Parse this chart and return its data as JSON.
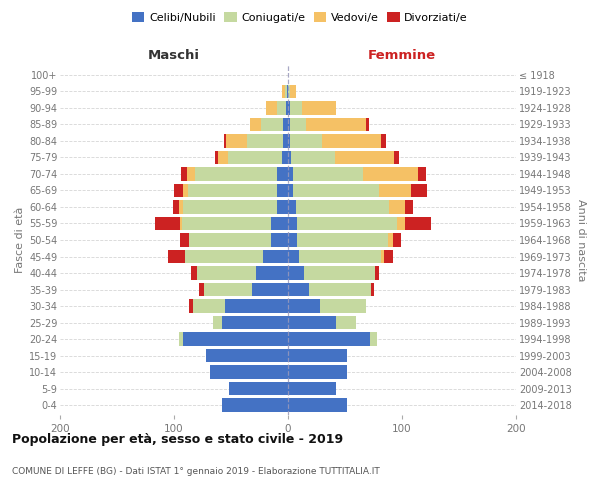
{
  "age_groups": [
    "0-4",
    "5-9",
    "10-14",
    "15-19",
    "20-24",
    "25-29",
    "30-34",
    "35-39",
    "40-44",
    "45-49",
    "50-54",
    "55-59",
    "60-64",
    "65-69",
    "70-74",
    "75-79",
    "80-84",
    "85-89",
    "90-94",
    "95-99",
    "100+"
  ],
  "birth_years": [
    "2014-2018",
    "2009-2013",
    "2004-2008",
    "1999-2003",
    "1994-1998",
    "1989-1993",
    "1984-1988",
    "1979-1983",
    "1974-1978",
    "1969-1973",
    "1964-1968",
    "1959-1963",
    "1954-1958",
    "1949-1953",
    "1944-1948",
    "1939-1943",
    "1934-1938",
    "1929-1933",
    "1924-1928",
    "1919-1923",
    "≤ 1918"
  ],
  "colors": {
    "celibi": "#4472c4",
    "coniugati": "#c5d9a0",
    "vedovi": "#f5c165",
    "divorziati": "#cc2222"
  },
  "male_celibi": [
    58,
    52,
    68,
    72,
    92,
    58,
    55,
    32,
    28,
    22,
    15,
    15,
    10,
    10,
    10,
    5,
    4,
    4,
    2,
    1,
    0
  ],
  "male_coniugati": [
    0,
    0,
    0,
    0,
    4,
    8,
    28,
    42,
    52,
    68,
    72,
    78,
    82,
    78,
    72,
    48,
    32,
    20,
    8,
    2,
    0
  ],
  "male_vedovi": [
    0,
    0,
    0,
    0,
    0,
    0,
    0,
    0,
    0,
    0,
    0,
    2,
    4,
    4,
    7,
    8,
    18,
    9,
    9,
    2,
    0
  ],
  "male_divorziati": [
    0,
    0,
    0,
    0,
    0,
    0,
    4,
    4,
    5,
    15,
    8,
    22,
    5,
    8,
    5,
    3,
    2,
    0,
    0,
    0,
    0
  ],
  "female_nubili": [
    52,
    42,
    52,
    52,
    72,
    42,
    28,
    18,
    14,
    10,
    8,
    8,
    7,
    4,
    4,
    3,
    2,
    2,
    2,
    0,
    0
  ],
  "female_coniugate": [
    0,
    0,
    0,
    0,
    6,
    18,
    40,
    55,
    62,
    72,
    80,
    88,
    82,
    76,
    62,
    38,
    28,
    14,
    10,
    2,
    0
  ],
  "female_vedove": [
    0,
    0,
    0,
    0,
    0,
    0,
    0,
    0,
    0,
    2,
    4,
    7,
    14,
    28,
    48,
    52,
    52,
    52,
    30,
    5,
    0
  ],
  "female_divorziate": [
    0,
    0,
    0,
    0,
    0,
    0,
    0,
    2,
    4,
    8,
    7,
    22,
    7,
    14,
    7,
    4,
    4,
    3,
    0,
    0,
    0
  ],
  "title": "Popolazione per età, sesso e stato civile - 2019",
  "subtitle": "COMUNE DI LEFFE (BG) - Dati ISTAT 1° gennaio 2019 - Elaborazione TUTTITALIA.IT",
  "label_maschi": "Maschi",
  "label_femmine": "Femmine",
  "ylabel_left": "Fasce di età",
  "ylabel_right": "Anni di nascita",
  "xlim": 200,
  "legend_labels": [
    "Celibi/Nubili",
    "Coniugati/e",
    "Vedovi/e",
    "Divorziati/e"
  ],
  "bg_color": "#ffffff",
  "grid_color": "#cccccc",
  "text_color": "#777777",
  "header_color_left": "#333333",
  "header_color_right": "#cc2222"
}
